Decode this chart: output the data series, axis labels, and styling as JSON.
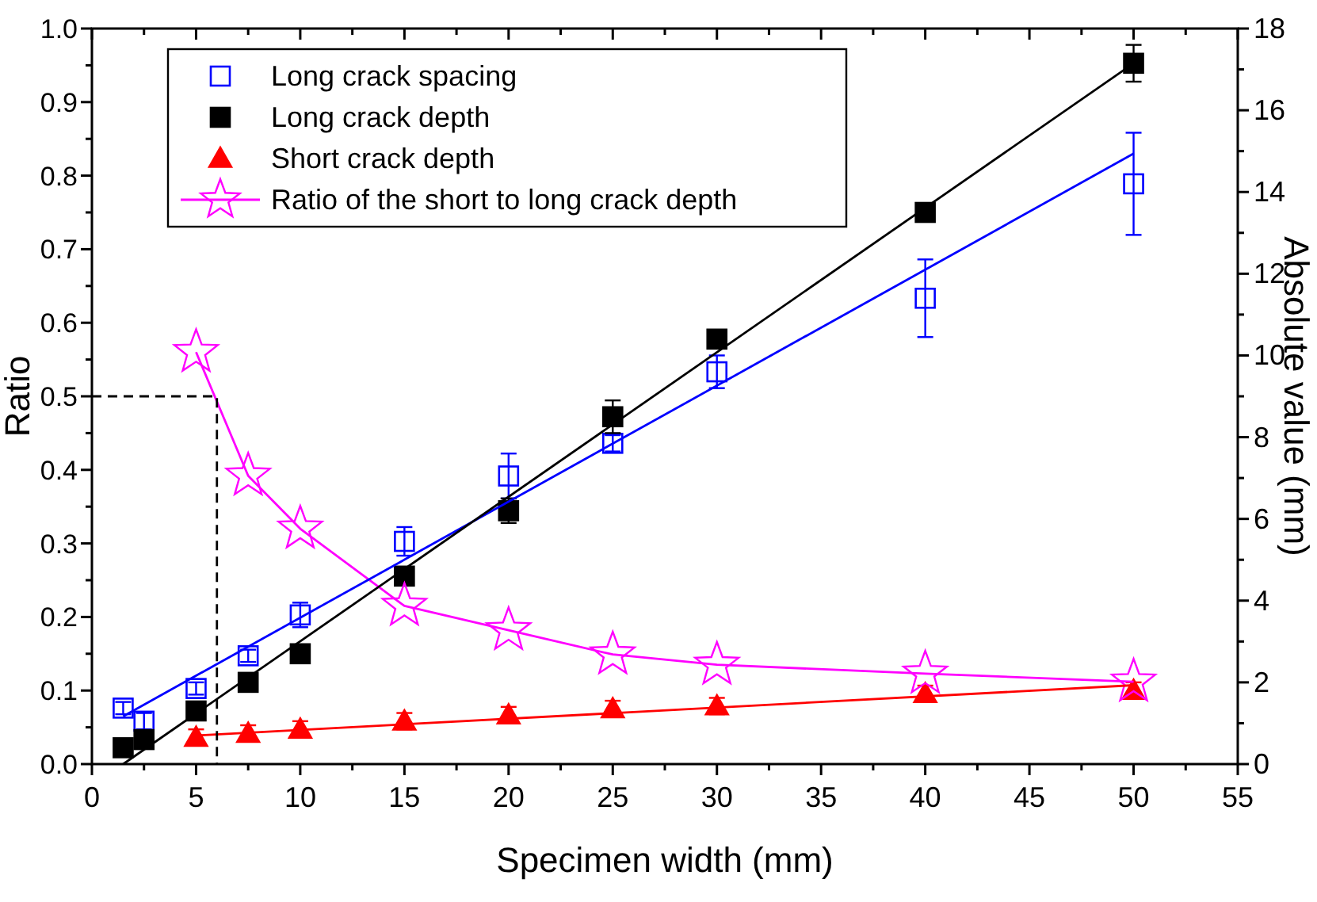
{
  "chart_data": {
    "type": "scatter",
    "xlabel": "Specimen width (mm)",
    "ylabel": "Ratio",
    "y2label": "Absolute value (mm)",
    "xlim": [
      0,
      55
    ],
    "xticks": [
      0,
      {
        "value": 2.5,
        "label": null
      },
      5,
      {
        "value": 7.5,
        "label": null
      },
      10,
      {
        "value": 12.5,
        "label": null
      },
      15,
      {
        "value": 17.5,
        "label": null
      },
      20,
      {
        "value": 22.5,
        "label": null
      },
      25,
      {
        "value": 27.5,
        "label": null
      },
      30,
      {
        "value": 32.5,
        "label": null
      },
      35,
      {
        "value": 37.5,
        "label": null
      },
      40,
      {
        "value": 42.5,
        "label": null
      },
      45,
      {
        "value": 47.5,
        "label": null
      },
      50,
      {
        "value": 52.5,
        "label": null
      },
      55
    ],
    "ylim": [
      0,
      1
    ],
    "yticks": [
      {
        "value": 0,
        "label": "0.0"
      },
      {
        "value": 0.05,
        "label": null
      },
      0.1,
      {
        "value": 0.15,
        "label": null
      },
      0.2,
      {
        "value": 0.25,
        "label": null
      },
      0.3,
      {
        "value": 0.35,
        "label": null
      },
      0.4,
      {
        "value": 0.45,
        "label": null
      },
      0.5,
      {
        "value": 0.55,
        "label": null
      },
      0.6,
      {
        "value": 0.65,
        "label": null
      },
      0.7,
      {
        "value": 0.75,
        "label": null
      },
      0.8,
      {
        "value": 0.85,
        "label": null
      },
      0.9,
      {
        "value": 0.95,
        "label": null
      },
      {
        "value": 1,
        "label": "1.0"
      }
    ],
    "y2lim": [
      0,
      18
    ],
    "y2ticks": [
      0,
      {
        "value": 1,
        "label": null
      },
      2,
      {
        "value": 3,
        "label": null
      },
      4,
      {
        "value": 5,
        "label": null
      },
      6,
      {
        "value": 7,
        "label": null
      },
      8,
      {
        "value": 9,
        "label": null
      },
      10,
      {
        "value": 11,
        "label": null
      },
      12,
      {
        "value": 13,
        "label": null
      },
      14,
      {
        "value": 15,
        "label": null
      },
      16,
      {
        "value": 17,
        "label": null
      },
      18
    ],
    "legend": "top left",
    "grid": false,
    "series": [
      {
        "name": "Long crack spacing",
        "axis": "y2",
        "marker": "square",
        "color": "#0000ff",
        "x": [
          1.5,
          2.5,
          5,
          7.5,
          10,
          15,
          20,
          25,
          30,
          40,
          50
        ],
        "values": [
          1.37,
          1.05,
          1.85,
          2.65,
          3.65,
          5.45,
          7.05,
          7.85,
          9.6,
          11.4,
          14.2
        ],
        "errors": [
          0.15,
          0.2,
          0.15,
          0.15,
          0.3,
          0.35,
          0.55,
          0.2,
          0.4,
          0.95,
          1.25
        ]
      },
      {
        "name": "Long crack depth",
        "axis": "y2",
        "marker": "square",
        "color": "#000000",
        "x": [
          1.5,
          2.5,
          5,
          7.5,
          10,
          15,
          20,
          25,
          30,
          40,
          50
        ],
        "values": [
          0.4,
          0.6,
          1.3,
          2.0,
          2.7,
          4.6,
          6.2,
          8.5,
          10.4,
          13.5,
          17.15
        ],
        "errors": [
          null,
          null,
          null,
          null,
          null,
          null,
          0.3,
          0.4,
          0.2,
          null,
          0.45
        ]
      },
      {
        "name": "Short crack depth",
        "axis": "y2",
        "marker": "triangle",
        "color": "#ff0000",
        "x": [
          5,
          7.5,
          10,
          15,
          20,
          25,
          30,
          40,
          50
        ],
        "values": [
          0.65,
          0.75,
          0.85,
          1.05,
          1.2,
          1.35,
          1.42,
          1.72,
          1.8
        ],
        "errors": [
          0.2,
          0.2,
          0.2,
          0.2,
          0.2,
          0.2,
          0.2,
          0.2,
          0.2
        ]
      },
      {
        "name": "Ratio of the short to long crack depth",
        "type": "line",
        "axis": "y",
        "marker": "star",
        "color": "#ff00ff",
        "x": [
          5,
          7.5,
          10,
          15,
          20,
          25,
          30,
          40,
          50
        ],
        "values": [
          0.56,
          0.392,
          0.32,
          0.215,
          0.182,
          0.149,
          0.135,
          0.123,
          0.112
        ]
      },
      {
        "type": "line",
        "axis": "y2",
        "marker": "none",
        "color": "#0000ff",
        "x": [
          1.5,
          50
        ],
        "values": [
          1.17,
          14.94
        ]
      },
      {
        "type": "line",
        "axis": "y2",
        "marker": "none",
        "color": "#000000",
        "x": [
          1.5,
          50
        ],
        "values": [
          0,
          17.15
        ]
      },
      {
        "type": "line",
        "axis": "y2",
        "marker": "none",
        "color": "#ff0000",
        "x": [
          5,
          50
        ],
        "values": [
          0.7,
          1.93
        ]
      },
      {
        "type": "line",
        "axis": "y",
        "marker": "none",
        "line_style": "dashed",
        "color": "#000000",
        "x": [
          0,
          6,
          6
        ],
        "values": [
          0.5,
          0.5,
          0
        ]
      }
    ]
  }
}
